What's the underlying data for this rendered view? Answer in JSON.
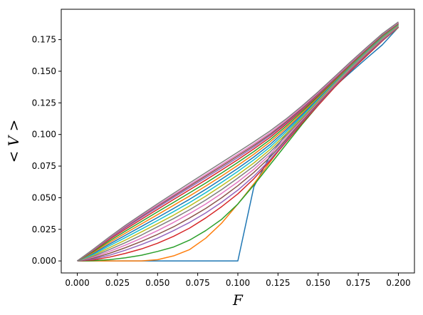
{
  "chart_data": {
    "type": "line",
    "title": "",
    "xlabel": "F",
    "ylabel": "< V >",
    "xlim": [
      -0.01,
      0.21
    ],
    "ylim": [
      -0.0095,
      0.199
    ],
    "xticks": [
      0.0,
      0.025,
      0.05,
      0.075,
      0.1,
      0.125,
      0.15,
      0.175,
      0.2
    ],
    "xtick_labels": [
      "0.000",
      "0.025",
      "0.050",
      "0.075",
      "0.100",
      "0.125",
      "0.150",
      "0.175",
      "0.200"
    ],
    "yticks": [
      0.0,
      0.025,
      0.05,
      0.075,
      0.1,
      0.125,
      0.15,
      0.175
    ],
    "ytick_labels": [
      "0.000",
      "0.025",
      "0.050",
      "0.075",
      "0.100",
      "0.125",
      "0.150",
      "0.175"
    ],
    "grid": false,
    "legend": "none",
    "x": [
      0.0,
      0.01,
      0.02,
      0.03,
      0.04,
      0.05,
      0.06,
      0.07,
      0.08,
      0.09,
      0.1,
      0.11,
      0.12,
      0.13,
      0.14,
      0.15,
      0.16,
      0.17,
      0.18,
      0.19,
      0.2
    ],
    "series": [
      {
        "color": "#1f77b4",
        "values": [
          0,
          0,
          0,
          0,
          0,
          0,
          0,
          0,
          0,
          0,
          0,
          0.0587,
          0.0831,
          0.1003,
          0.1139,
          0.126,
          0.1376,
          0.1489,
          0.16,
          0.1709,
          0.1848
        ]
      },
      {
        "color": "#ff7f0e",
        "values": [
          0,
          0,
          0,
          0,
          0,
          0.001,
          0.004,
          0.009,
          0.018,
          0.03,
          0.045,
          0.061,
          0.078,
          0.095,
          0.111,
          0.126,
          0.139,
          0.151,
          0.163,
          0.174,
          0.1846
        ]
      },
      {
        "color": "#2ca02c",
        "values": [
          0,
          0.0002,
          0.001,
          0.0025,
          0.0045,
          0.0075,
          0.011,
          0.0165,
          0.024,
          0.033,
          0.045,
          0.06,
          0.076,
          0.092,
          0.108,
          0.123,
          0.137,
          0.15,
          0.162,
          0.174,
          0.1848
        ]
      },
      {
        "color": "#d62728",
        "values": [
          0,
          0.0008,
          0.003,
          0.006,
          0.0095,
          0.014,
          0.0195,
          0.026,
          0.034,
          0.043,
          0.053,
          0.065,
          0.079,
          0.094,
          0.109,
          0.123,
          0.137,
          0.15,
          0.162,
          0.174,
          0.185
        ]
      },
      {
        "color": "#9467bd",
        "values": [
          0,
          0.0015,
          0.0045,
          0.0085,
          0.013,
          0.018,
          0.024,
          0.0305,
          0.038,
          0.0465,
          0.056,
          0.067,
          0.08,
          0.095,
          0.11,
          0.124,
          0.138,
          0.151,
          0.163,
          0.1745,
          0.1852
        ]
      },
      {
        "color": "#8c564b",
        "values": [
          0,
          0.0022,
          0.006,
          0.0105,
          0.0155,
          0.021,
          0.027,
          0.034,
          0.0415,
          0.05,
          0.0595,
          0.07,
          0.082,
          0.096,
          0.1105,
          0.1245,
          0.1385,
          0.1515,
          0.1635,
          0.175,
          0.1855
        ]
      },
      {
        "color": "#e377c2",
        "values": [
          0,
          0.003,
          0.0075,
          0.0125,
          0.018,
          0.024,
          0.0305,
          0.0375,
          0.045,
          0.0535,
          0.0625,
          0.0725,
          0.084,
          0.0975,
          0.1115,
          0.1255,
          0.139,
          0.152,
          0.164,
          0.1755,
          0.1858
        ]
      },
      {
        "color": "#7f7f7f",
        "values": [
          0,
          0.0037,
          0.009,
          0.0145,
          0.0205,
          0.027,
          0.0335,
          0.0405,
          0.0482,
          0.0565,
          0.0655,
          0.075,
          0.086,
          0.099,
          0.1125,
          0.1262,
          0.1396,
          0.1525,
          0.1645,
          0.176,
          0.1861
        ]
      },
      {
        "color": "#bcbd22",
        "values": [
          0,
          0.0045,
          0.0105,
          0.0165,
          0.023,
          0.0295,
          0.0362,
          0.0435,
          0.0512,
          0.0595,
          0.0682,
          0.0775,
          0.088,
          0.1005,
          0.1135,
          0.127,
          0.1402,
          0.153,
          0.165,
          0.1765,
          0.1864
        ]
      },
      {
        "color": "#17becf",
        "values": [
          0,
          0.0052,
          0.012,
          0.0185,
          0.0252,
          0.032,
          0.039,
          0.0462,
          0.054,
          0.0622,
          0.0708,
          0.08,
          0.09,
          0.102,
          0.1145,
          0.1278,
          0.1408,
          0.1535,
          0.1655,
          0.177,
          0.1867
        ]
      },
      {
        "color": "#1f77b4",
        "values": [
          0,
          0.006,
          0.0133,
          0.0203,
          0.0273,
          0.0343,
          0.0415,
          0.0488,
          0.0566,
          0.0648,
          0.0732,
          0.0822,
          0.092,
          0.1035,
          0.1157,
          0.1286,
          0.1414,
          0.154,
          0.166,
          0.1774,
          0.187
        ]
      },
      {
        "color": "#ff7f0e",
        "values": [
          0,
          0.0067,
          0.0146,
          0.022,
          0.0293,
          0.0366,
          0.044,
          0.0514,
          0.0592,
          0.0672,
          0.0756,
          0.0844,
          0.094,
          0.105,
          0.1168,
          0.1294,
          0.142,
          0.1545,
          0.1664,
          0.1778,
          0.1873
        ]
      },
      {
        "color": "#2ca02c",
        "values": [
          0,
          0.0074,
          0.0158,
          0.0236,
          0.0312,
          0.0388,
          0.0463,
          0.0539,
          0.0616,
          0.0696,
          0.0779,
          0.0865,
          0.0958,
          0.1065,
          0.118,
          0.1302,
          0.1426,
          0.155,
          0.1668,
          0.1782,
          0.1876
        ]
      },
      {
        "color": "#d62728",
        "values": [
          0,
          0.0081,
          0.017,
          0.0251,
          0.033,
          0.0408,
          0.0486,
          0.0563,
          0.064,
          0.072,
          0.0801,
          0.0886,
          0.0976,
          0.108,
          0.1192,
          0.131,
          0.1432,
          0.1555,
          0.1672,
          0.1786,
          0.1879
        ]
      },
      {
        "color": "#9467bd",
        "values": [
          0,
          0.0085,
          0.0178,
          0.0262,
          0.0343,
          0.0423,
          0.0502,
          0.058,
          0.0658,
          0.0737,
          0.0818,
          0.0901,
          0.099,
          0.1091,
          0.12,
          0.1316,
          0.1437,
          0.1558,
          0.1675,
          0.1788,
          0.1881
        ]
      },
      {
        "color": "#8c564b",
        "values": [
          0,
          0.0088,
          0.0183,
          0.027,
          0.0352,
          0.0433,
          0.0513,
          0.0592,
          0.0671,
          0.075,
          0.0831,
          0.0913,
          0.1,
          0.1099,
          0.1206,
          0.1321,
          0.1441,
          0.1561,
          0.1677,
          0.179,
          0.1882
        ]
      },
      {
        "color": "#e377c2",
        "values": [
          0,
          0.009,
          0.0186,
          0.0275,
          0.0359,
          0.0441,
          0.0522,
          0.0602,
          0.0682,
          0.0762,
          0.0843,
          0.0925,
          0.1012,
          0.111,
          0.1215,
          0.1328,
          0.1446,
          0.1565,
          0.168,
          0.1793,
          0.1885
        ]
      },
      {
        "color": "#7f7f7f",
        "values": [
          0,
          0.0093,
          0.019,
          0.0282,
          0.0368,
          0.0452,
          0.0535,
          0.0617,
          0.0698,
          0.0779,
          0.086,
          0.0942,
          0.1027,
          0.1122,
          0.1226,
          0.1337,
          0.1454,
          0.1572,
          0.1686,
          0.1797,
          0.189
        ]
      }
    ]
  }
}
